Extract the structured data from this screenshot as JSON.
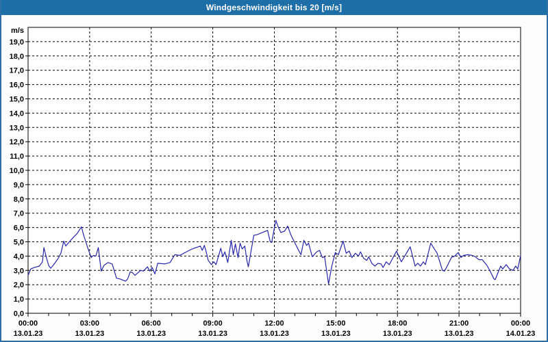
{
  "window": {
    "title": "Windgeschwindigkeit bis 20 [m/s]"
  },
  "colors": {
    "titlebar_bg": "#1d6da7",
    "titlebar_text": "#ffffff",
    "frame_border": "#2f6fa7",
    "page_bg": "#fdfdfd",
    "plot_bg": "#ffffff",
    "grid": "#000000",
    "axis": "#000000",
    "label_text": "#000000",
    "series_line": "#2424ad"
  },
  "chart_data": {
    "type": "line",
    "title": "Windgeschwindigkeit bis 20 [m/s]",
    "ylabel": "m/s",
    "ylim": [
      0,
      20
    ],
    "x_hours_range": [
      0,
      24
    ],
    "grid": true,
    "legend": false,
    "y_tick_labels": [
      "0,0",
      "1,0",
      "2,0",
      "3,0",
      "4,0",
      "5,0",
      "6,0",
      "7,0",
      "8,0",
      "9,0",
      "10,0",
      "11,0",
      "12,0",
      "13,0",
      "14,0",
      "15,0",
      "16,0",
      "17,0",
      "18,0",
      "19,0"
    ],
    "x_ticks": [
      {
        "hour": 0,
        "time": "00:00",
        "date": "13.01.23"
      },
      {
        "hour": 3,
        "time": "03:00",
        "date": "13.01.23"
      },
      {
        "hour": 6,
        "time": "06:00",
        "date": "13.01.23"
      },
      {
        "hour": 9,
        "time": "09:00",
        "date": "13.01.23"
      },
      {
        "hour": 12,
        "time": "12:00",
        "date": "13.01.23"
      },
      {
        "hour": 15,
        "time": "15:00",
        "date": "13.01.23"
      },
      {
        "hour": 18,
        "time": "18:00",
        "date": "13.01.23"
      },
      {
        "hour": 21,
        "time": "21:00",
        "date": "13.01.23"
      },
      {
        "hour": 24,
        "time": "00:00",
        "date": "14.01.23"
      }
    ],
    "minor_x_tick_every_hours": 1,
    "series": [
      {
        "name": "Windgeschwindigkeit",
        "unit": "m/s",
        "color": "#2424ad",
        "points": [
          [
            0.0,
            2.65
          ],
          [
            0.13,
            3.1
          ],
          [
            0.3,
            3.2
          ],
          [
            0.55,
            3.3
          ],
          [
            0.7,
            3.6
          ],
          [
            0.77,
            4.6
          ],
          [
            0.88,
            3.95
          ],
          [
            1.0,
            3.35
          ],
          [
            1.1,
            3.15
          ],
          [
            1.25,
            3.4
          ],
          [
            1.45,
            3.8
          ],
          [
            1.6,
            4.2
          ],
          [
            1.74,
            5.05
          ],
          [
            1.84,
            4.7
          ],
          [
            1.95,
            4.9
          ],
          [
            2.2,
            5.3
          ],
          [
            2.4,
            5.6
          ],
          [
            2.6,
            6.05
          ],
          [
            2.7,
            5.5
          ],
          [
            2.8,
            5.05
          ],
          [
            2.9,
            4.6
          ],
          [
            3.0,
            4.2
          ],
          [
            3.08,
            3.9
          ],
          [
            3.18,
            4.05
          ],
          [
            3.3,
            4.0
          ],
          [
            3.42,
            4.6
          ],
          [
            3.56,
            2.95
          ],
          [
            3.7,
            3.35
          ],
          [
            3.9,
            3.55
          ],
          [
            4.1,
            3.45
          ],
          [
            4.31,
            2.45
          ],
          [
            4.48,
            2.4
          ],
          [
            4.65,
            2.3
          ],
          [
            4.75,
            2.25
          ],
          [
            4.85,
            2.4
          ],
          [
            4.98,
            2.9
          ],
          [
            5.08,
            2.85
          ],
          [
            5.21,
            2.65
          ],
          [
            5.48,
            3.0
          ],
          [
            5.62,
            2.95
          ],
          [
            5.72,
            3.1
          ],
          [
            5.82,
            3.25
          ],
          [
            5.92,
            2.95
          ],
          [
            6.05,
            3.2
          ],
          [
            6.18,
            2.75
          ],
          [
            6.32,
            3.5
          ],
          [
            6.65,
            3.45
          ],
          [
            6.92,
            3.55
          ],
          [
            7.15,
            4.1
          ],
          [
            7.39,
            4.05
          ],
          [
            7.72,
            4.3
          ],
          [
            7.92,
            4.45
          ],
          [
            8.09,
            4.55
          ],
          [
            8.39,
            4.7
          ],
          [
            8.49,
            4.4
          ],
          [
            8.59,
            4.75
          ],
          [
            8.68,
            4.3
          ],
          [
            8.78,
            3.7
          ],
          [
            8.93,
            3.4
          ],
          [
            9.05,
            3.6
          ],
          [
            9.16,
            3.4
          ],
          [
            9.39,
            4.55
          ],
          [
            9.49,
            3.95
          ],
          [
            9.59,
            4.3
          ],
          [
            9.73,
            3.55
          ],
          [
            9.9,
            5.1
          ],
          [
            10.0,
            4.1
          ],
          [
            10.1,
            4.85
          ],
          [
            10.23,
            3.9
          ],
          [
            10.33,
            4.9
          ],
          [
            10.43,
            4.5
          ],
          [
            10.56,
            4.7
          ],
          [
            10.66,
            3.7
          ],
          [
            10.73,
            3.25
          ],
          [
            11.0,
            5.45
          ],
          [
            11.16,
            5.5
          ],
          [
            11.5,
            5.7
          ],
          [
            11.67,
            5.8
          ],
          [
            11.8,
            5.0
          ],
          [
            11.87,
            4.95
          ],
          [
            12.07,
            6.5
          ],
          [
            12.2,
            6.0
          ],
          [
            12.32,
            5.65
          ],
          [
            12.5,
            5.75
          ],
          [
            12.65,
            6.1
          ],
          [
            12.8,
            5.5
          ],
          [
            12.9,
            5.2
          ],
          [
            13.24,
            4.25
          ],
          [
            13.3,
            4.1
          ],
          [
            13.44,
            5.1
          ],
          [
            13.57,
            4.75
          ],
          [
            13.67,
            4.9
          ],
          [
            13.85,
            3.95
          ],
          [
            14.07,
            4.3
          ],
          [
            14.2,
            4.4
          ],
          [
            14.34,
            3.9
          ],
          [
            14.45,
            3.95
          ],
          [
            14.64,
            2.05
          ],
          [
            14.8,
            3.3
          ],
          [
            14.97,
            4.25
          ],
          [
            15.12,
            4.1
          ],
          [
            15.35,
            5.05
          ],
          [
            15.5,
            4.2
          ],
          [
            15.65,
            4.35
          ],
          [
            15.78,
            3.9
          ],
          [
            15.95,
            4.2
          ],
          [
            16.1,
            4.0
          ],
          [
            16.2,
            4.3
          ],
          [
            16.35,
            3.85
          ],
          [
            16.5,
            3.7
          ],
          [
            16.6,
            3.95
          ],
          [
            16.75,
            3.5
          ],
          [
            16.9,
            3.3
          ],
          [
            17.05,
            3.5
          ],
          [
            17.2,
            3.45
          ],
          [
            17.3,
            3.2
          ],
          [
            17.45,
            3.6
          ],
          [
            17.6,
            3.4
          ],
          [
            17.95,
            4.35
          ],
          [
            18.19,
            3.6
          ],
          [
            18.62,
            4.65
          ],
          [
            18.86,
            3.3
          ],
          [
            18.99,
            3.5
          ],
          [
            19.12,
            3.3
          ],
          [
            19.26,
            3.6
          ],
          [
            19.36,
            3.4
          ],
          [
            19.62,
            4.9
          ],
          [
            19.93,
            4.2
          ],
          [
            20.19,
            3.0
          ],
          [
            20.29,
            2.95
          ],
          [
            20.46,
            3.4
          ],
          [
            20.63,
            3.9
          ],
          [
            20.79,
            4.0
          ],
          [
            20.96,
            4.25
          ],
          [
            21.09,
            3.9
          ],
          [
            21.23,
            4.05
          ],
          [
            21.43,
            4.1
          ],
          [
            21.63,
            4.05
          ],
          [
            21.8,
            3.95
          ],
          [
            21.96,
            3.75
          ],
          [
            22.13,
            3.75
          ],
          [
            22.36,
            3.35
          ],
          [
            22.53,
            2.9
          ],
          [
            22.7,
            2.4
          ],
          [
            22.76,
            2.35
          ],
          [
            23.03,
            3.3
          ],
          [
            23.13,
            3.1
          ],
          [
            23.3,
            3.4
          ],
          [
            23.46,
            3.1
          ],
          [
            23.63,
            3.0
          ],
          [
            23.76,
            3.3
          ],
          [
            23.86,
            3.1
          ],
          [
            24.0,
            4.05
          ]
        ]
      }
    ]
  }
}
